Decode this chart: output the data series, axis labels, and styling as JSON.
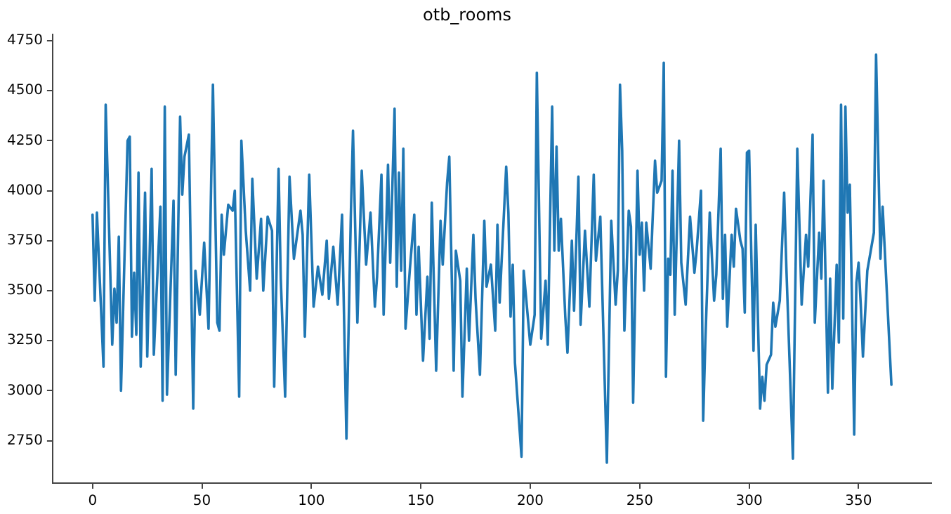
{
  "chart_data": {
    "type": "line",
    "title": "otb_rooms",
    "x": [
      0,
      1,
      2,
      5,
      6,
      9,
      10,
      11,
      12,
      13,
      16,
      17,
      18,
      19,
      20,
      21,
      22,
      24,
      25,
      27,
      28,
      31,
      32,
      33,
      34,
      37,
      38,
      40,
      41,
      42,
      44,
      46,
      47,
      49,
      51,
      53,
      55,
      57,
      58,
      59,
      60,
      62,
      64,
      65,
      67,
      68,
      70,
      72,
      73,
      75,
      77,
      78,
      80,
      82,
      83,
      85,
      86,
      88,
      90,
      92,
      95,
      96,
      97,
      99,
      101,
      103,
      105,
      107,
      108,
      110,
      112,
      114,
      116,
      118,
      119,
      121,
      123,
      125,
      127,
      129,
      130,
      132,
      133,
      135,
      136,
      138,
      139,
      140,
      141,
      142,
      143,
      145,
      147,
      148,
      149,
      151,
      153,
      154,
      155,
      157,
      159,
      160,
      162,
      163,
      165,
      166,
      168,
      169,
      171,
      172,
      174,
      175,
      177,
      179,
      180,
      182,
      184,
      185,
      186,
      189,
      190,
      191,
      192,
      193,
      196,
      197,
      200,
      202,
      203,
      205,
      207,
      208,
      210,
      211,
      212,
      213,
      214,
      216,
      217,
      219,
      220,
      222,
      223,
      225,
      227,
      229,
      230,
      232,
      233,
      235,
      237,
      239,
      240,
      241,
      242,
      243,
      245,
      246,
      247,
      249,
      250,
      251,
      252,
      253,
      255,
      257,
      258,
      260,
      261,
      262,
      263,
      264,
      265,
      266,
      268,
      269,
      271,
      273,
      275,
      276,
      278,
      279,
      280,
      282,
      284,
      285,
      287,
      288,
      289,
      290,
      292,
      293,
      294,
      296,
      297,
      298,
      299,
      300,
      301,
      302,
      303,
      305,
      306,
      307,
      308,
      310,
      311,
      312,
      314,
      316,
      317,
      320,
      322,
      324,
      326,
      327,
      329,
      330,
      332,
      333,
      334,
      336,
      337,
      338,
      340,
      341,
      342,
      343,
      344,
      345,
      346,
      347,
      348,
      349,
      350,
      351,
      352,
      354,
      357,
      358,
      360,
      361,
      365
    ],
    "series": [
      {
        "color": "#1f77b4",
        "values": [
          3880,
          3450,
          3890,
          3120,
          4430,
          3230,
          3510,
          3340,
          3770,
          3000,
          4250,
          4270,
          3270,
          3590,
          3280,
          4090,
          3120,
          3990,
          3170,
          4110,
          3180,
          3920,
          2950,
          4420,
          2980,
          3950,
          3080,
          4370,
          3980,
          4170,
          4280,
          2910,
          3600,
          3380,
          3740,
          3310,
          4530,
          3340,
          3300,
          3880,
          3680,
          3930,
          3900,
          4000,
          2970,
          4250,
          3800,
          3500,
          4060,
          3560,
          3860,
          3500,
          3870,
          3800,
          3020,
          4110,
          3560,
          2970,
          4070,
          3660,
          3900,
          3780,
          3270,
          4080,
          3420,
          3620,
          3480,
          3750,
          3460,
          3720,
          3430,
          3880,
          2760,
          3870,
          4300,
          3340,
          4100,
          3630,
          3890,
          3420,
          3570,
          4080,
          3380,
          4130,
          3640,
          4410,
          3520,
          4090,
          3600,
          4210,
          3310,
          3610,
          3880,
          3380,
          3720,
          3150,
          3570,
          3260,
          3940,
          3100,
          3850,
          3630,
          4040,
          4170,
          3100,
          3700,
          3550,
          2970,
          3610,
          3250,
          3780,
          3460,
          3080,
          3850,
          3520,
          3630,
          3300,
          3830,
          3440,
          4120,
          3890,
          3370,
          3630,
          3140,
          2670,
          3600,
          3230,
          3380,
          4590,
          3260,
          3550,
          3230,
          4420,
          3700,
          4220,
          3700,
          3860,
          3370,
          3190,
          3750,
          3400,
          4070,
          3330,
          3800,
          3420,
          4080,
          3650,
          3870,
          3460,
          2640,
          3850,
          3430,
          3600,
          4530,
          4200,
          3300,
          3900,
          3820,
          2940,
          4100,
          3680,
          3840,
          3500,
          3840,
          3610,
          4150,
          3990,
          4050,
          4640,
          3070,
          3660,
          3580,
          4100,
          3380,
          4250,
          3640,
          3430,
          3870,
          3590,
          3700,
          4000,
          2850,
          3250,
          3890,
          3450,
          3580,
          4210,
          3460,
          3780,
          3320,
          3780,
          3620,
          3910,
          3750,
          3710,
          3390,
          4190,
          4200,
          3680,
          3200,
          3830,
          2910,
          3070,
          2950,
          3130,
          3180,
          3440,
          3320,
          3450,
          3990,
          3620,
          2660,
          4210,
          3430,
          3780,
          3620,
          4280,
          3340,
          3790,
          3560,
          4050,
          2990,
          3560,
          3010,
          3630,
          3240,
          4430,
          3360,
          4420,
          3890,
          4030,
          3450,
          2780,
          3540,
          3640,
          3430,
          3170,
          3600,
          3790,
          4680,
          3660,
          3920,
          3030
        ]
      }
    ],
    "xlim": [
      -18.25,
      383.25
    ],
    "xticks": [
      0,
      50,
      100,
      150,
      200,
      250,
      300,
      350
    ],
    "ylim": [
      2538,
      4782
    ],
    "yticks": [
      2750,
      3000,
      3250,
      3500,
      3750,
      4000,
      4250,
      4500,
      4750
    ],
    "grid": false,
    "legend": false,
    "line_style": "solid",
    "marker": "none"
  }
}
